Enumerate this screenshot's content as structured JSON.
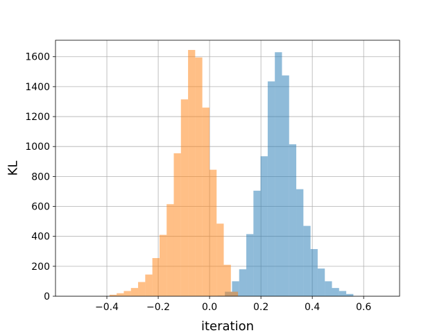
{
  "chart_data": {
    "type": "bar",
    "subtype": "overlapping-histogram",
    "title": "",
    "xlabel": "iteration",
    "ylabel": "KL",
    "xlim": [
      -0.6,
      0.74
    ],
    "ylim": [
      0,
      1710
    ],
    "grid": true,
    "x_ticks": [
      -0.4,
      -0.2,
      0.0,
      0.2,
      0.4,
      0.6
    ],
    "x_tick_labels": [
      "−0.4",
      "−0.2",
      "0.0",
      "0.2",
      "0.4",
      "0.6"
    ],
    "y_ticks": [
      0,
      200,
      400,
      600,
      800,
      1000,
      1200,
      1400,
      1600
    ],
    "y_tick_labels": [
      "0",
      "200",
      "400",
      "600",
      "800",
      "1000",
      "1200",
      "1400",
      "1600"
    ],
    "bin_width": 0.0278,
    "series": [
      {
        "color": "#1f77b4",
        "alpha": 0.5,
        "bin_starts": [
          0.0318,
          0.0596,
          0.0874,
          0.1152,
          0.143,
          0.1708,
          0.1986,
          0.2264,
          0.2542,
          0.282,
          0.3098,
          0.3376,
          0.3654,
          0.3932,
          0.421,
          0.4488,
          0.4766,
          0.5044,
          0.5322
        ],
        "values": [
          3,
          30,
          100,
          180,
          415,
          705,
          935,
          1435,
          1630,
          1475,
          1015,
          715,
          470,
          315,
          185,
          100,
          55,
          35,
          15
        ]
      },
      {
        "color": "#ff7f0e",
        "alpha": 0.5,
        "bin_starts": [
          -0.3896,
          -0.3618,
          -0.334,
          -0.3062,
          -0.2784,
          -0.2506,
          -0.2228,
          -0.195,
          -0.1672,
          -0.1394,
          -0.1116,
          -0.0838,
          -0.056,
          -0.0282,
          -0.0004,
          0.0274,
          0.0552,
          0.083
        ],
        "values": [
          10,
          20,
          35,
          55,
          95,
          145,
          255,
          410,
          615,
          955,
          1315,
          1645,
          1595,
          1260,
          845,
          485,
          210,
          30
        ]
      }
    ]
  }
}
